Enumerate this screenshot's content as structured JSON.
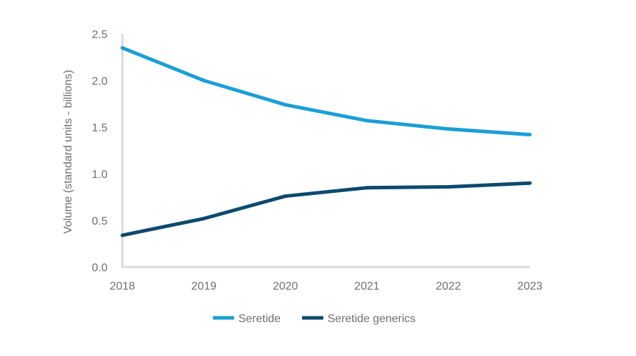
{
  "chart_data": {
    "type": "line",
    "title": "",
    "xlabel": "",
    "ylabel": "Volume (standard units - billions)",
    "categories": [
      "2018",
      "2019",
      "2020",
      "2021",
      "2022",
      "2023"
    ],
    "ylim": [
      0,
      2.5
    ],
    "yticks": [
      "0.0",
      "0.5",
      "1.0",
      "1.5",
      "2.0",
      "2.5"
    ],
    "grid": false,
    "legend_position": "bottom",
    "series": [
      {
        "name": "Seretide",
        "color": "#1a9fd6",
        "values": [
          2.35,
          2.0,
          1.74,
          1.57,
          1.48,
          1.42
        ]
      },
      {
        "name": "Seretide generics",
        "color": "#0c4a6e",
        "values": [
          0.34,
          0.52,
          0.76,
          0.85,
          0.86,
          0.9
        ]
      }
    ]
  }
}
